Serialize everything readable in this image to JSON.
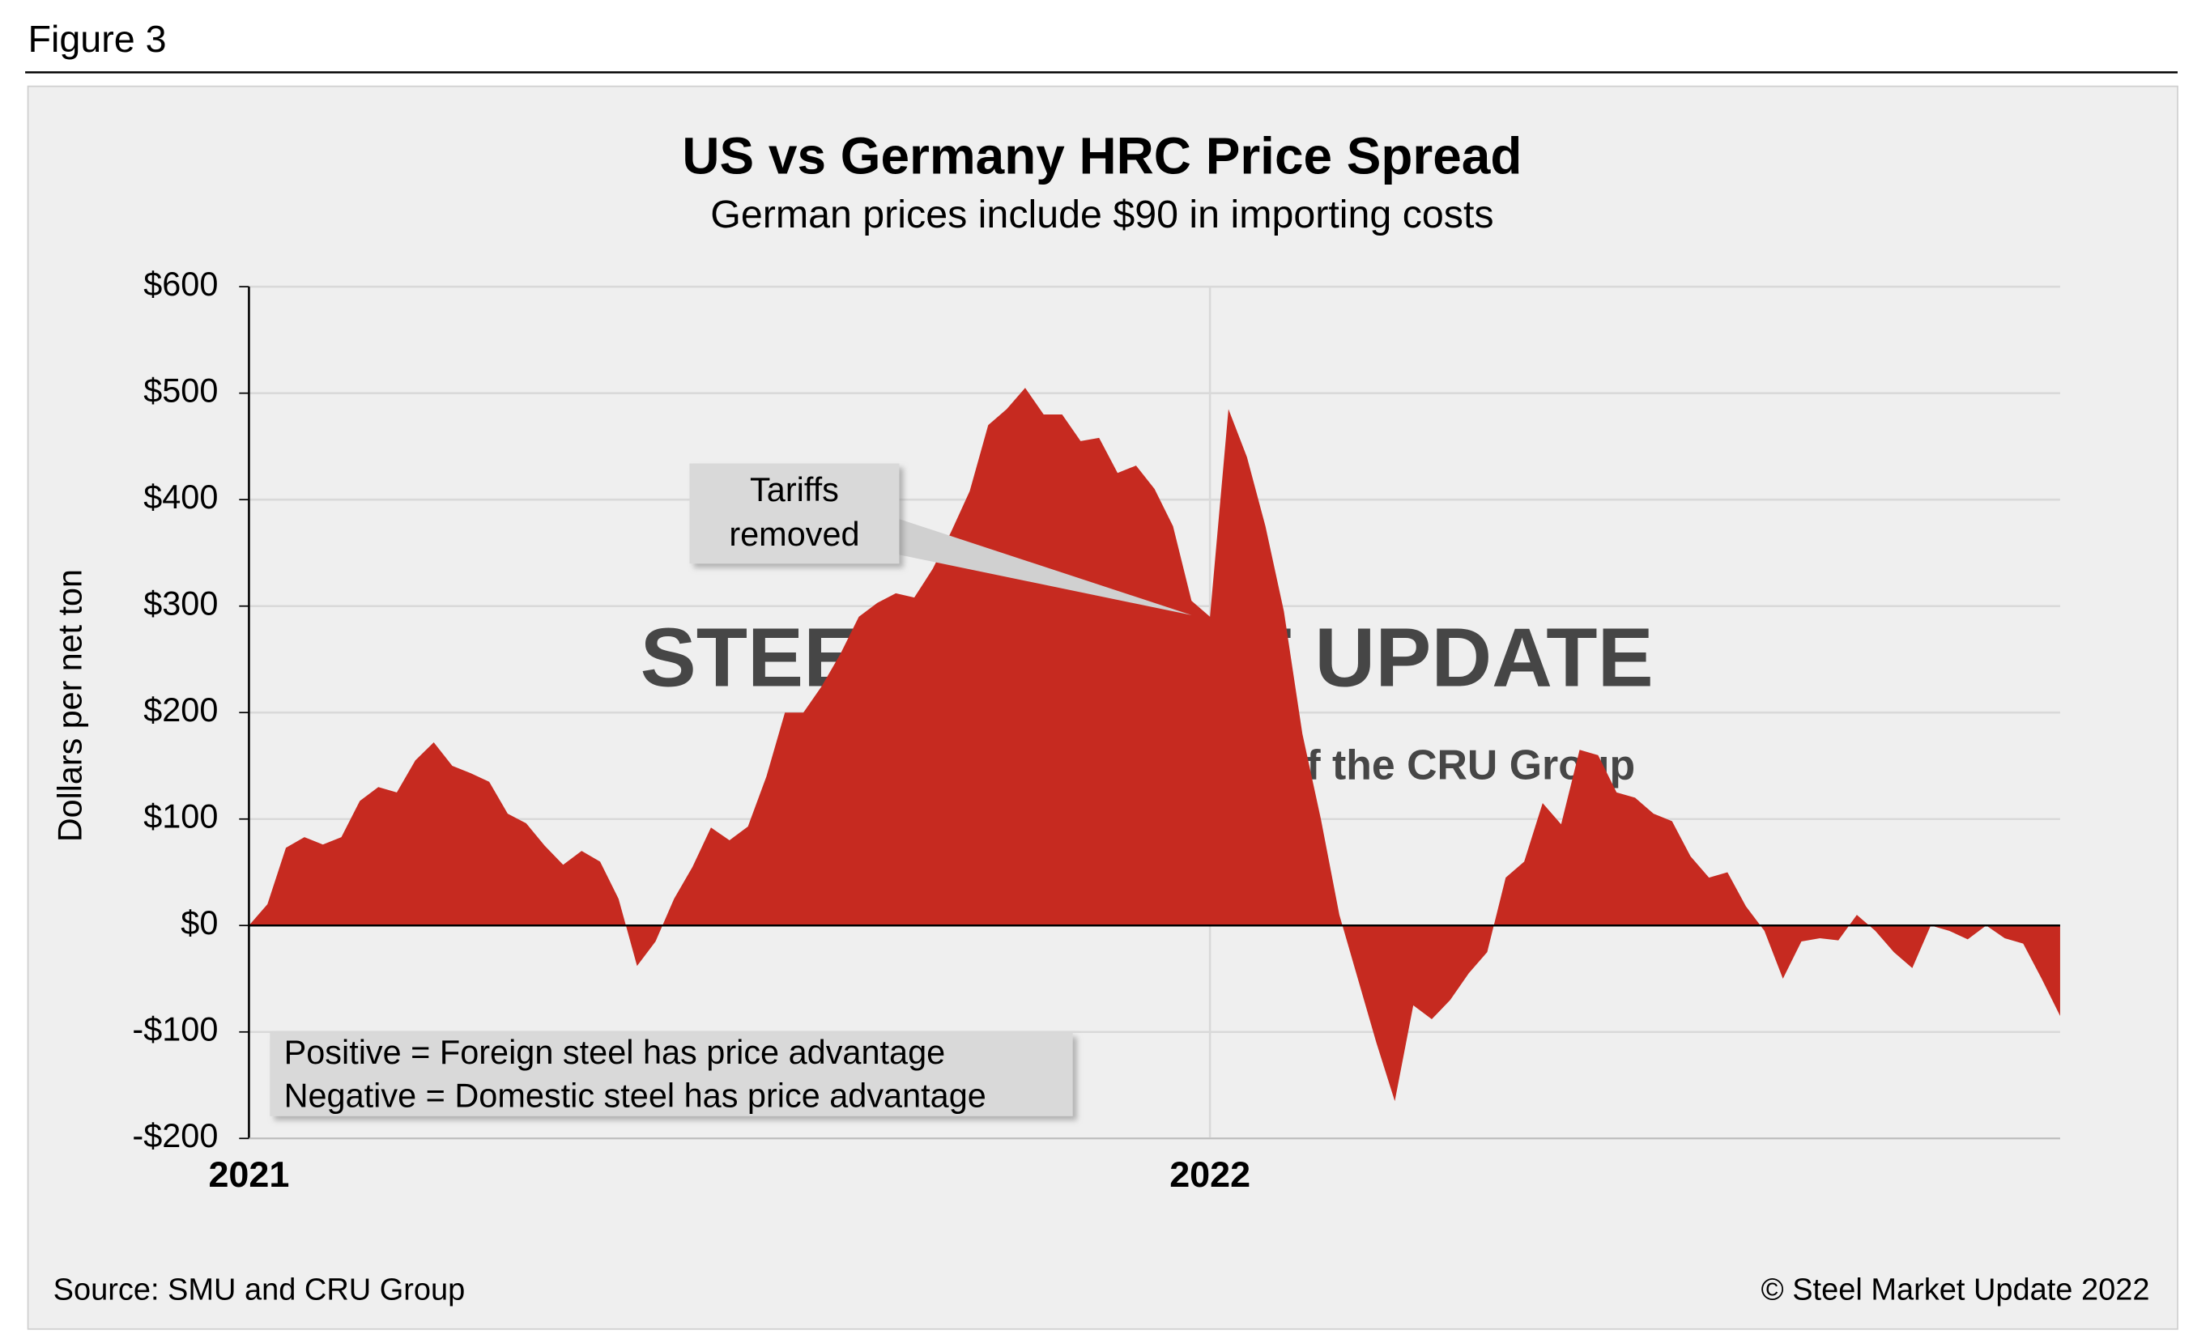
{
  "figure_label": "Figure 3",
  "chart_data": {
    "type": "area",
    "title": "US vs Germany HRC Price Spread",
    "subtitle": "German prices include $90 in importing costs",
    "y_label": "Dollars per net ton",
    "categories": [
      "2021",
      null,
      null,
      null,
      null,
      null,
      null,
      null,
      null,
      null,
      null,
      null,
      null,
      null,
      null,
      null,
      null,
      null,
      null,
      null,
      null,
      null,
      null,
      null,
      null,
      null,
      null,
      null,
      null,
      null,
      null,
      null,
      null,
      null,
      null,
      null,
      null,
      null,
      null,
      null,
      null,
      null,
      null,
      null,
      null,
      null,
      null,
      null,
      null,
      null,
      null,
      null,
      "2022",
      null,
      null,
      null,
      null,
      null,
      null,
      null,
      null,
      null,
      null,
      null,
      null,
      null,
      null,
      null,
      null,
      null,
      null,
      null,
      null,
      null,
      null,
      null,
      null,
      null,
      null,
      null,
      null,
      null,
      null,
      null,
      null,
      null,
      null,
      null,
      null,
      null,
      null,
      null,
      null,
      null,
      null,
      null,
      null,
      null,
      null
    ],
    "values": [
      0,
      20,
      73,
      83,
      76,
      83,
      117,
      130,
      125,
      155,
      172,
      150,
      143,
      135,
      105,
      96,
      75,
      57,
      70,
      60,
      25,
      -38,
      -15,
      25,
      55,
      92,
      80,
      93,
      140,
      200,
      200,
      225,
      255,
      290,
      303,
      312,
      308,
      335,
      370,
      408,
      470,
      485,
      505,
      480,
      480,
      455,
      458,
      425,
      432,
      410,
      375,
      305,
      290,
      485,
      440,
      375,
      295,
      180,
      100,
      10,
      -50,
      -110,
      -165,
      -75,
      -88,
      -70,
      -45,
      -25,
      45,
      60,
      115,
      95,
      165,
      160,
      125,
      120,
      105,
      98,
      65,
      45,
      50,
      18,
      -5,
      -50,
      -15,
      -12,
      -14,
      10,
      -5,
      -25,
      -40,
      0,
      -5,
      -13,
      0,
      -12,
      -17,
      -50,
      -85
    ],
    "color": "#c62a20",
    "ylim": [
      -200,
      600
    ],
    "yticks": [
      {
        "value": -200,
        "label": "-$200"
      },
      {
        "value": -100,
        "label": "-$100"
      },
      {
        "value": 0,
        "label": "$0"
      },
      {
        "value": 100,
        "label": "$100"
      },
      {
        "value": 200,
        "label": "$200"
      },
      {
        "value": 300,
        "label": "$300"
      },
      {
        "value": 400,
        "label": "$400"
      },
      {
        "value": 500,
        "label": "$500"
      },
      {
        "value": 600,
        "label": "$600"
      }
    ],
    "grid": true,
    "annotation": "Tariffs removed",
    "notes": [
      "Positive = Foreign steel has price advantage",
      "Negative = Domestic steel has price advantage"
    ],
    "watermark": [
      "STEEL MARKET UPDATE",
      "part of the CRU Group"
    ],
    "source": "Source: SMU and CRU Group",
    "copyright": "© Steel Market Update 2022"
  }
}
